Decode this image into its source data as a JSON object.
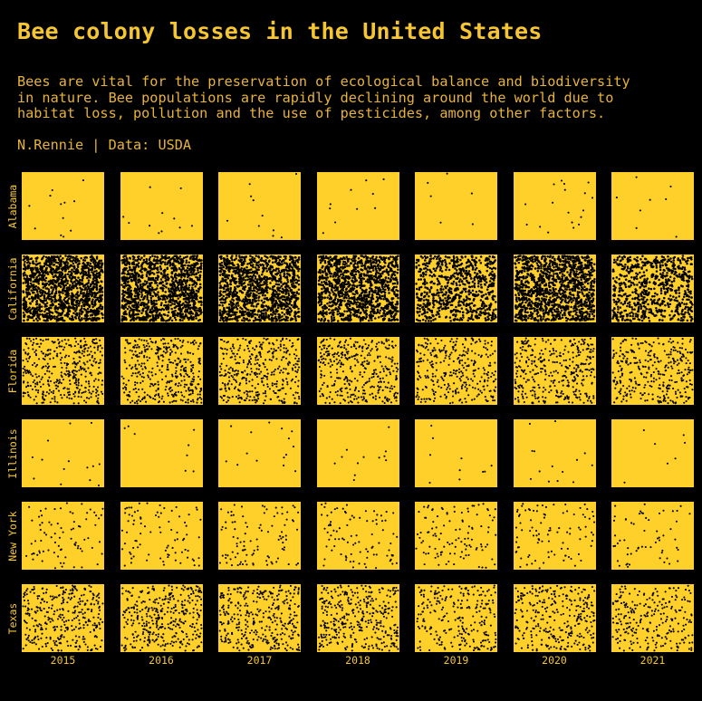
{
  "title": "Bee colony losses in the United States",
  "subtitle": "Bees are vital for the preservation of ecological balance and biodiversity\nin nature. Bee populations are rapidly declining around the world due to\nhabitat loss, pollution and the use of pesticides, among other factors.",
  "caption": "N.Rennie | Data: USDA",
  "colors": {
    "background": "#000000",
    "panel": "#ffcf2a",
    "dot": "#000000",
    "text": "#f5c532"
  },
  "chart_data": {
    "type": "scatter",
    "title": "Bee colony losses in the United States",
    "rows": [
      "Alabama",
      "California",
      "Florida",
      "Illinois",
      "New York",
      "Texas"
    ],
    "columns": [
      "2015",
      "2016",
      "2017",
      "2018",
      "2019",
      "2020",
      "2021"
    ],
    "series": [
      {
        "name": "Alabama",
        "values": [
          12,
          11,
          10,
          10,
          6,
          18,
          8
        ]
      },
      {
        "name": "California",
        "values": [
          1350,
          1300,
          1250,
          1200,
          750,
          1250,
          700
        ]
      },
      {
        "name": "Florida",
        "values": [
          400,
          390,
          370,
          360,
          320,
          360,
          330
        ]
      },
      {
        "name": "Illinois",
        "values": [
          14,
          8,
          15,
          12,
          10,
          14,
          7
        ]
      },
      {
        "name": "New York",
        "values": [
          80,
          85,
          100,
          90,
          110,
          95,
          60
        ]
      },
      {
        "name": "Texas",
        "values": [
          330,
          360,
          350,
          350,
          250,
          300,
          250
        ]
      }
    ]
  }
}
